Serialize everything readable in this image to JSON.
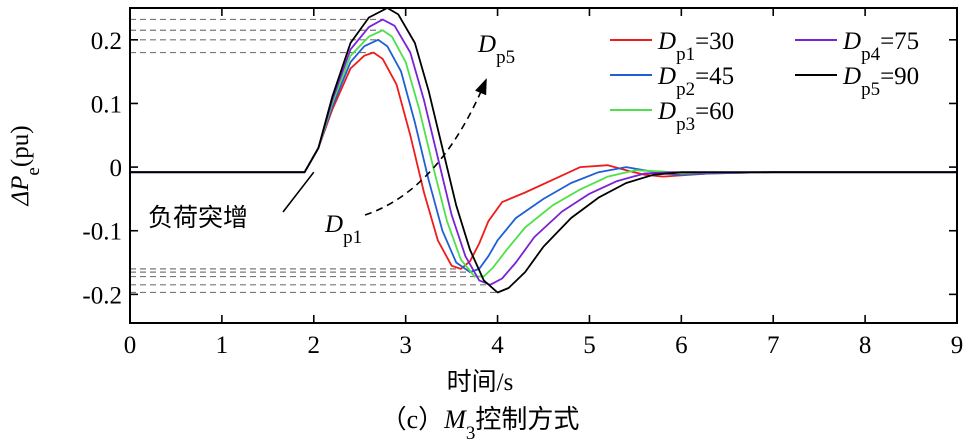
{
  "chart_data": {
    "type": "line",
    "xlabel": "时间/s",
    "ylabel": {
      "main": "ΔP",
      "sub": "e",
      "suffix": "(pu)"
    },
    "caption": {
      "prefix": "（c）",
      "main": "M",
      "sub": "3",
      "suffix": "控制方式"
    },
    "xlim": [
      0,
      9
    ],
    "ylim": [
      -0.245,
      0.25
    ],
    "x_ticks": [
      0,
      1,
      2,
      3,
      4,
      5,
      6,
      7,
      8,
      9
    ],
    "y_ticks": [
      {
        "value": 0.2,
        "label": "0.2"
      },
      {
        "value": 0.1,
        "label": "0.1"
      },
      {
        "value": 0,
        "label": "0"
      },
      {
        "value": -0.1,
        "label": "-0.1"
      },
      {
        "value": -0.2,
        "label": "-0.2"
      }
    ],
    "grid": false,
    "legend_position": "top-right",
    "annotations": {
      "load_increase": "负荷突增",
      "arrow_start": {
        "main": "D",
        "sub": "p1"
      },
      "arrow_end": {
        "main": "D",
        "sub": "p5"
      }
    },
    "series": [
      {
        "name": {
          "main": "D",
          "sub": "p1",
          "suffix": "=30"
        },
        "color": "#ee1c1c",
        "x": [
          0,
          1.9,
          2.05,
          2.2,
          2.4,
          2.55,
          2.65,
          2.75,
          2.9,
          3.05,
          3.2,
          3.35,
          3.5,
          3.6,
          3.7,
          3.8,
          3.9,
          4.05,
          4.3,
          4.6,
          4.9,
          5.2,
          5.4,
          5.6,
          5.8,
          6.0,
          6.3,
          7.0,
          8.0,
          9.0
        ],
        "y": [
          -0.008,
          -0.008,
          0.03,
          0.09,
          0.155,
          0.175,
          0.18,
          0.17,
          0.13,
          0.05,
          -0.04,
          -0.115,
          -0.155,
          -0.16,
          -0.148,
          -0.12,
          -0.085,
          -0.055,
          -0.04,
          -0.02,
          0.0,
          0.003,
          -0.005,
          -0.012,
          -0.015,
          -0.013,
          -0.01,
          -0.008,
          -0.008,
          -0.008
        ]
      },
      {
        "name": {
          "main": "D",
          "sub": "p2",
          "suffix": "=45"
        },
        "color": "#1f5fd6",
        "x": [
          0,
          1.9,
          2.05,
          2.2,
          2.4,
          2.55,
          2.7,
          2.8,
          2.95,
          3.1,
          3.25,
          3.4,
          3.55,
          3.7,
          3.8,
          3.9,
          4.0,
          4.2,
          4.5,
          4.8,
          5.1,
          5.4,
          5.6,
          5.8,
          6.0,
          6.3,
          7.0,
          8.0,
          9.0
        ],
        "y": [
          -0.008,
          -0.008,
          0.03,
          0.095,
          0.165,
          0.19,
          0.2,
          0.19,
          0.15,
          0.07,
          -0.02,
          -0.1,
          -0.15,
          -0.165,
          -0.16,
          -0.14,
          -0.115,
          -0.08,
          -0.05,
          -0.025,
          -0.008,
          0.0,
          -0.005,
          -0.01,
          -0.012,
          -0.01,
          -0.008,
          -0.008,
          -0.008
        ]
      },
      {
        "name": {
          "main": "D",
          "sub": "p3",
          "suffix": "=60"
        },
        "color": "#4fe04a",
        "x": [
          0,
          1.9,
          2.05,
          2.2,
          2.4,
          2.6,
          2.75,
          2.85,
          3.0,
          3.15,
          3.3,
          3.45,
          3.6,
          3.75,
          3.85,
          3.95,
          4.1,
          4.3,
          4.6,
          4.9,
          5.2,
          5.5,
          5.8,
          6.0,
          6.3,
          7.0,
          8.0,
          9.0
        ],
        "y": [
          -0.008,
          -0.008,
          0.03,
          0.1,
          0.175,
          0.205,
          0.215,
          0.205,
          0.165,
          0.09,
          0.0,
          -0.085,
          -0.145,
          -0.172,
          -0.172,
          -0.158,
          -0.13,
          -0.095,
          -0.06,
          -0.035,
          -0.015,
          -0.005,
          -0.007,
          -0.01,
          -0.009,
          -0.008,
          -0.008,
          -0.008
        ]
      },
      {
        "name": {
          "main": "D",
          "sub": "p4",
          "suffix": "=75"
        },
        "color": "#7a22d6",
        "x": [
          0,
          1.9,
          2.05,
          2.2,
          2.4,
          2.6,
          2.75,
          2.88,
          3.05,
          3.2,
          3.35,
          3.5,
          3.65,
          3.8,
          3.92,
          4.05,
          4.2,
          4.4,
          4.7,
          5.0,
          5.3,
          5.6,
          5.9,
          6.2,
          7.0,
          8.0,
          9.0
        ],
        "y": [
          -0.008,
          -0.008,
          0.03,
          0.105,
          0.185,
          0.22,
          0.232,
          0.222,
          0.18,
          0.105,
          0.015,
          -0.075,
          -0.14,
          -0.178,
          -0.185,
          -0.175,
          -0.15,
          -0.11,
          -0.07,
          -0.042,
          -0.022,
          -0.01,
          -0.008,
          -0.009,
          -0.008,
          -0.008,
          -0.008
        ]
      },
      {
        "name": {
          "main": "D",
          "sub": "p5",
          "suffix": "=90"
        },
        "color": "#000000",
        "x": [
          0,
          1.9,
          2.05,
          2.2,
          2.4,
          2.6,
          2.8,
          2.92,
          3.1,
          3.25,
          3.4,
          3.55,
          3.7,
          3.85,
          4.0,
          4.12,
          4.3,
          4.5,
          4.8,
          5.1,
          5.4,
          5.7,
          6.0,
          6.3,
          7.0,
          8.0,
          9.0
        ],
        "y": [
          -0.008,
          -0.008,
          0.03,
          0.11,
          0.195,
          0.235,
          0.25,
          0.24,
          0.195,
          0.12,
          0.03,
          -0.06,
          -0.13,
          -0.178,
          -0.197,
          -0.19,
          -0.165,
          -0.125,
          -0.08,
          -0.048,
          -0.025,
          -0.012,
          -0.008,
          -0.008,
          -0.008,
          -0.008,
          -0.008
        ]
      }
    ]
  }
}
